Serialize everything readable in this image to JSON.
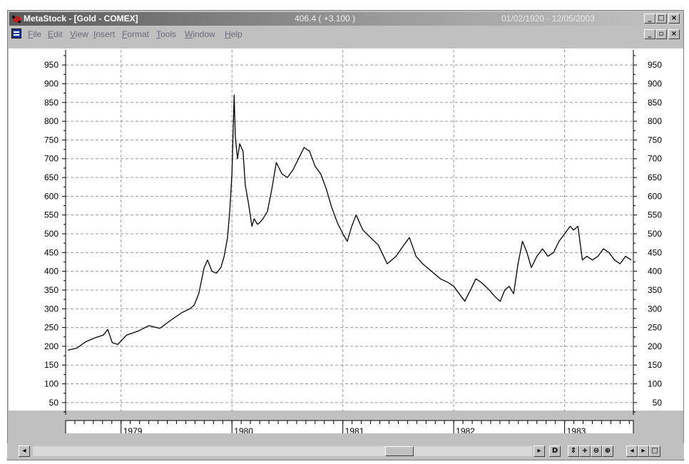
{
  "window": {
    "title": "MetaStock - [Gold - COMEX]",
    "price_readout": "406.4 ( +3.100 )",
    "date_range": "01/02/1920 - 12/05/2003",
    "controls": {
      "minimize": "_",
      "restore": "□",
      "close": "×",
      "doc_minimize": "_",
      "doc_restore": "▫",
      "doc_close": "×"
    }
  },
  "menu": [
    "File",
    "Edit",
    "View",
    "Insert",
    "Format",
    "Tools",
    "Window",
    "Help"
  ],
  "toolbar": {
    "d_label": "D"
  },
  "colors": {
    "titlebar_start": "#5a5a5a",
    "chart_line": "#000000",
    "grid": "#9a9a9a"
  },
  "chart_data": {
    "type": "line",
    "title": "",
    "xlabel": "",
    "ylabel": "",
    "x_ticks": [
      "1979",
      "1980",
      "1981",
      "1982",
      "1983"
    ],
    "y_ticks": [
      50,
      100,
      150,
      200,
      250,
      300,
      350,
      400,
      450,
      500,
      550,
      600,
      650,
      700,
      750,
      800,
      850,
      900,
      950
    ],
    "ylim": [
      25,
      975
    ],
    "xlim": [
      1978.5,
      1983.62
    ],
    "grid": true,
    "right_axis": true,
    "series": [
      {
        "x": [
          1978.52,
          1978.6,
          1978.68,
          1978.76,
          1978.84,
          1978.88,
          1978.92,
          1978.97,
          1979.05,
          1979.15,
          1979.25,
          1979.35,
          1979.45,
          1979.55,
          1979.62,
          1979.66,
          1979.7,
          1979.75,
          1979.78,
          1979.82,
          1979.86,
          1979.9,
          1979.93,
          1979.96,
          1979.98,
          1980.0,
          1980.02,
          1980.03,
          1980.05,
          1980.07,
          1980.1,
          1980.12,
          1980.15,
          1980.18,
          1980.2,
          1980.23,
          1980.25,
          1980.28,
          1980.32,
          1980.36,
          1980.4,
          1980.45,
          1980.5,
          1980.55,
          1980.6,
          1980.65,
          1980.7,
          1980.75,
          1980.8,
          1980.85,
          1980.9,
          1980.95,
          1981.0,
          1981.04,
          1981.08,
          1981.12,
          1981.18,
          1981.25,
          1981.32,
          1981.4,
          1981.48,
          1981.55,
          1981.6,
          1981.66,
          1981.72,
          1981.8,
          1981.88,
          1981.95,
          1982.0,
          1982.05,
          1982.1,
          1982.15,
          1982.2,
          1982.25,
          1982.32,
          1982.38,
          1982.42,
          1982.46,
          1982.5,
          1982.54,
          1982.58,
          1982.62,
          1982.66,
          1982.7,
          1982.75,
          1982.8,
          1982.85,
          1982.9,
          1982.95,
          1983.0,
          1983.05,
          1983.08,
          1983.12,
          1983.16,
          1983.2,
          1983.25,
          1983.3,
          1983.35,
          1983.4,
          1983.45,
          1983.5,
          1983.55,
          1983.6
        ],
        "y": [
          190,
          195,
          212,
          222,
          230,
          245,
          210,
          205,
          230,
          240,
          255,
          248,
          270,
          290,
          300,
          310,
          340,
          410,
          430,
          400,
          395,
          410,
          440,
          490,
          560,
          660,
          870,
          760,
          700,
          740,
          720,
          630,
          580,
          520,
          540,
          525,
          530,
          540,
          560,
          620,
          690,
          660,
          650,
          670,
          700,
          730,
          720,
          680,
          660,
          620,
          570,
          530,
          500,
          480,
          520,
          550,
          510,
          490,
          470,
          420,
          440,
          470,
          490,
          440,
          420,
          400,
          380,
          370,
          360,
          340,
          320,
          350,
          380,
          370,
          350,
          330,
          320,
          350,
          360,
          340,
          420,
          480,
          450,
          410,
          440,
          460,
          440,
          450,
          480,
          500,
          520,
          510,
          520,
          430,
          440,
          430,
          440,
          460,
          450,
          430,
          420,
          440,
          430
        ]
      }
    ]
  }
}
